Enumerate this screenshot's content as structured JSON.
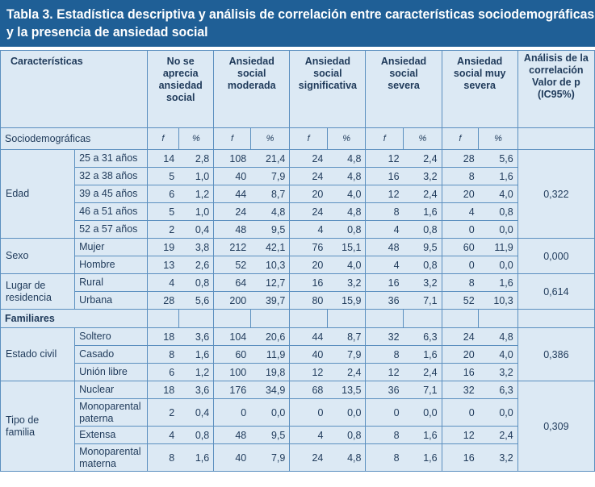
{
  "title": {
    "line1": "Tabla 3. Estadística descriptiva y análisis de correlación entre características sociodemográficas",
    "line2": "y la presencia de ansiedad social"
  },
  "headers": {
    "caracteristicas": "Características",
    "no_aprecia": [
      "No se",
      "aprecia",
      "ansiedad",
      "social"
    ],
    "moderada": [
      "Ansiedad",
      "social",
      "moderada"
    ],
    "significativa": [
      "Ansiedad",
      "social",
      "significativa"
    ],
    "severa": [
      "Ansiedad",
      "social",
      "severa"
    ],
    "muy_severa": [
      "Ansiedad",
      "social muy",
      "severa"
    ],
    "analisis": [
      "Análisis de la",
      "correlación",
      "Valor de p",
      "(IC95%)"
    ]
  },
  "fp_row": {
    "label": "Sociodemográficas",
    "f": "f",
    "pct": "%"
  },
  "groups": [
    {
      "category": [
        "Edad"
      ],
      "p": "0,322",
      "rows": [
        {
          "sub": [
            "25 a 31 años"
          ],
          "vals": [
            "14",
            "2,8",
            "108",
            "21,4",
            "24",
            "4,8",
            "12",
            "2,4",
            "28",
            "5,6"
          ]
        },
        {
          "sub": [
            "32 a 38 años"
          ],
          "vals": [
            "5",
            "1,0",
            "40",
            "7,9",
            "24",
            "4,8",
            "16",
            "3,2",
            "8",
            "1,6"
          ]
        },
        {
          "sub": [
            "39 a 45 años"
          ],
          "vals": [
            "6",
            "1,2",
            "44",
            "8,7",
            "20",
            "4,0",
            "12",
            "2,4",
            "20",
            "4,0"
          ]
        },
        {
          "sub": [
            "46 a 51 años"
          ],
          "vals": [
            "5",
            "1,0",
            "24",
            "4,8",
            "24",
            "4,8",
            "8",
            "1,6",
            "4",
            "0,8"
          ]
        },
        {
          "sub": [
            "52 a 57 años"
          ],
          "vals": [
            "2",
            "0,4",
            "48",
            "9,5",
            "4",
            "0,8",
            "4",
            "0,8",
            "0",
            "0,0"
          ]
        }
      ]
    },
    {
      "category": [
        "Sexo"
      ],
      "p": "0,000",
      "rows": [
        {
          "sub": [
            "Mujer"
          ],
          "vals": [
            "19",
            "3,8",
            "212",
            "42,1",
            "76",
            "15,1",
            "48",
            "9,5",
            "60",
            "11,9"
          ]
        },
        {
          "sub": [
            "Hombre"
          ],
          "vals": [
            "13",
            "2,6",
            "52",
            "10,3",
            "20",
            "4,0",
            "4",
            "0,8",
            "0",
            "0,0"
          ]
        }
      ]
    },
    {
      "category": [
        "Lugar de",
        "residencia"
      ],
      "p": "0,614",
      "rows": [
        {
          "sub": [
            "Rural"
          ],
          "vals": [
            "4",
            "0,8",
            "64",
            "12,7",
            "16",
            "3,2",
            "16",
            "3,2",
            "8",
            "1,6"
          ]
        },
        {
          "sub": [
            "Urbana"
          ],
          "vals": [
            "28",
            "5,6",
            "200",
            "39,7",
            "80",
            "15,9",
            "36",
            "7,1",
            "52",
            "10,3"
          ]
        }
      ]
    },
    {
      "section": "Familiares"
    },
    {
      "category": [
        "Estado civil"
      ],
      "p": "0,386",
      "rows": [
        {
          "sub": [
            "Soltero"
          ],
          "vals": [
            "18",
            "3,6",
            "104",
            "20,6",
            "44",
            "8,7",
            "32",
            "6,3",
            "24",
            "4,8"
          ]
        },
        {
          "sub": [
            "Casado"
          ],
          "vals": [
            "8",
            "1,6",
            "60",
            "11,9",
            "40",
            "7,9",
            "8",
            "1,6",
            "20",
            "4,0"
          ]
        },
        {
          "sub": [
            "Unión libre"
          ],
          "vals": [
            "6",
            "1,2",
            "100",
            "19,8",
            "12",
            "2,4",
            "12",
            "2,4",
            "16",
            "3,2"
          ]
        }
      ]
    },
    {
      "category": [
        "Tipo de",
        "familia"
      ],
      "p": "0,309",
      "rows": [
        {
          "sub": [
            "Nuclear"
          ],
          "vals": [
            "18",
            "3,6",
            "176",
            "34,9",
            "68",
            "13,5",
            "36",
            "7,1",
            "32",
            "6,3"
          ]
        },
        {
          "sub": [
            "Monoparental",
            "paterna"
          ],
          "vals": [
            "2",
            "0,4",
            "0",
            "0,0",
            "0",
            "0,0",
            "0",
            "0,0",
            "0",
            "0,0"
          ]
        },
        {
          "sub": [
            "Extensa"
          ],
          "vals": [
            "4",
            "0,8",
            "48",
            "9,5",
            "4",
            "0,8",
            "8",
            "1,6",
            "12",
            "2,4"
          ]
        },
        {
          "sub": [
            "Monoparental",
            "materna"
          ],
          "vals": [
            "8",
            "1,6",
            "40",
            "7,9",
            "24",
            "4,8",
            "8",
            "1,6",
            "16",
            "3,2"
          ]
        }
      ]
    }
  ]
}
